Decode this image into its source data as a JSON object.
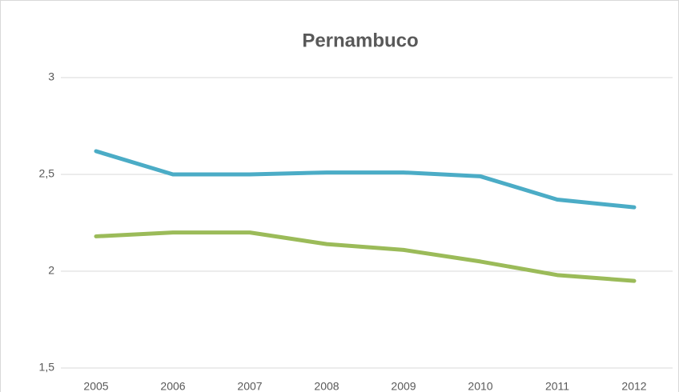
{
  "chart_data": {
    "type": "line",
    "title": "Pernambuco",
    "categories": [
      "2005",
      "2006",
      "2007",
      "2008",
      "2009",
      "2010",
      "2011",
      "2012"
    ],
    "series": [
      {
        "color": "#4bacc6",
        "values": [
          2.62,
          2.5,
          2.5,
          2.51,
          2.51,
          2.49,
          2.37,
          2.33
        ]
      },
      {
        "color": "#9bbb59",
        "values": [
          2.18,
          2.2,
          2.2,
          2.14,
          2.11,
          2.05,
          1.98,
          1.95
        ]
      }
    ],
    "ylim": [
      1.5,
      3
    ],
    "yticks": [
      {
        "value": 1.5,
        "label": "1,5"
      },
      2,
      {
        "value": 2.5,
        "label": "2,5"
      },
      3
    ],
    "grid": true
  }
}
